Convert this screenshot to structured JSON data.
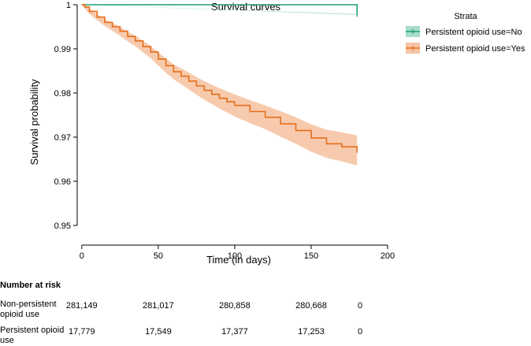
{
  "chart_data": {
    "type": "line",
    "title": "Survival curves",
    "xlabel": "Time (in days)",
    "ylabel": "Survival probability",
    "xlim": [
      -3,
      200
    ],
    "ylim": [
      0.9475,
      1.0
    ],
    "x_ticks": [
      0,
      50,
      100,
      150,
      200
    ],
    "y_ticks": [
      0.95,
      0.96,
      0.97,
      0.98,
      0.99,
      1
    ],
    "y_tick_labels": [
      "0.95",
      "0.96",
      "0.97",
      "0.98",
      "0.99",
      "1"
    ],
    "grid": false,
    "legend": {
      "title": "Strata",
      "position": "top-right"
    },
    "series": [
      {
        "name": "Persistent opioid use=No",
        "color": "#1b9e77",
        "band_color": "#a8ddc8",
        "x": [
          0,
          180
        ],
        "y": [
          1.0,
          0.9978
        ],
        "lower": [
          1.0,
          0.9977
        ],
        "upper": [
          1.0,
          0.9979
        ]
      },
      {
        "name": "Persistent opioid use=Yes",
        "color": "#e66e1a",
        "band_color": "#f6c4a4",
        "x": [
          0,
          2,
          5,
          10,
          15,
          20,
          25,
          30,
          35,
          40,
          45,
          50,
          55,
          60,
          65,
          70,
          75,
          80,
          85,
          90,
          95,
          100,
          110,
          120,
          130,
          140,
          150,
          160,
          170,
          180
        ],
        "y": [
          1.0,
          0.9995,
          0.9985,
          0.9972,
          0.996,
          0.995,
          0.994,
          0.9928,
          0.9918,
          0.9905,
          0.9893,
          0.9877,
          0.9862,
          0.9848,
          0.9838,
          0.9827,
          0.9816,
          0.9806,
          0.9797,
          0.9788,
          0.978,
          0.9772,
          0.9758,
          0.9745,
          0.973,
          0.9715,
          0.9698,
          0.9685,
          0.9678,
          0.967
        ],
        "lower": [
          1.0,
          0.9991,
          0.9979,
          0.9965,
          0.9952,
          0.9941,
          0.993,
          0.9917,
          0.9906,
          0.9892,
          0.9879,
          0.9862,
          0.9846,
          0.9831,
          0.982,
          0.9808,
          0.9796,
          0.9785,
          0.9775,
          0.9765,
          0.9756,
          0.9747,
          0.9732,
          0.9718,
          0.9701,
          0.9685,
          0.9667,
          0.9653,
          0.9645,
          0.9636
        ],
        "upper": [
          1.0,
          0.9999,
          0.9991,
          0.9979,
          0.9968,
          0.9959,
          0.995,
          0.9939,
          0.993,
          0.9918,
          0.9907,
          0.9892,
          0.9878,
          0.9865,
          0.9856,
          0.9846,
          0.9836,
          0.9827,
          0.9819,
          0.9811,
          0.9804,
          0.9797,
          0.9784,
          0.9772,
          0.9759,
          0.9745,
          0.9729,
          0.9717,
          0.9711,
          0.9704
        ]
      }
    ]
  },
  "risk_table": {
    "title": "Number at risk",
    "rows": [
      {
        "label": "Non-persistent opioid use",
        "values": [
          "281,149",
          "281,017",
          "280,858",
          "280,668",
          "0"
        ]
      },
      {
        "label": "Persistent opioid use",
        "values": [
          "17,779",
          "17,549",
          "17,377",
          "17,253",
          "0"
        ]
      }
    ]
  }
}
